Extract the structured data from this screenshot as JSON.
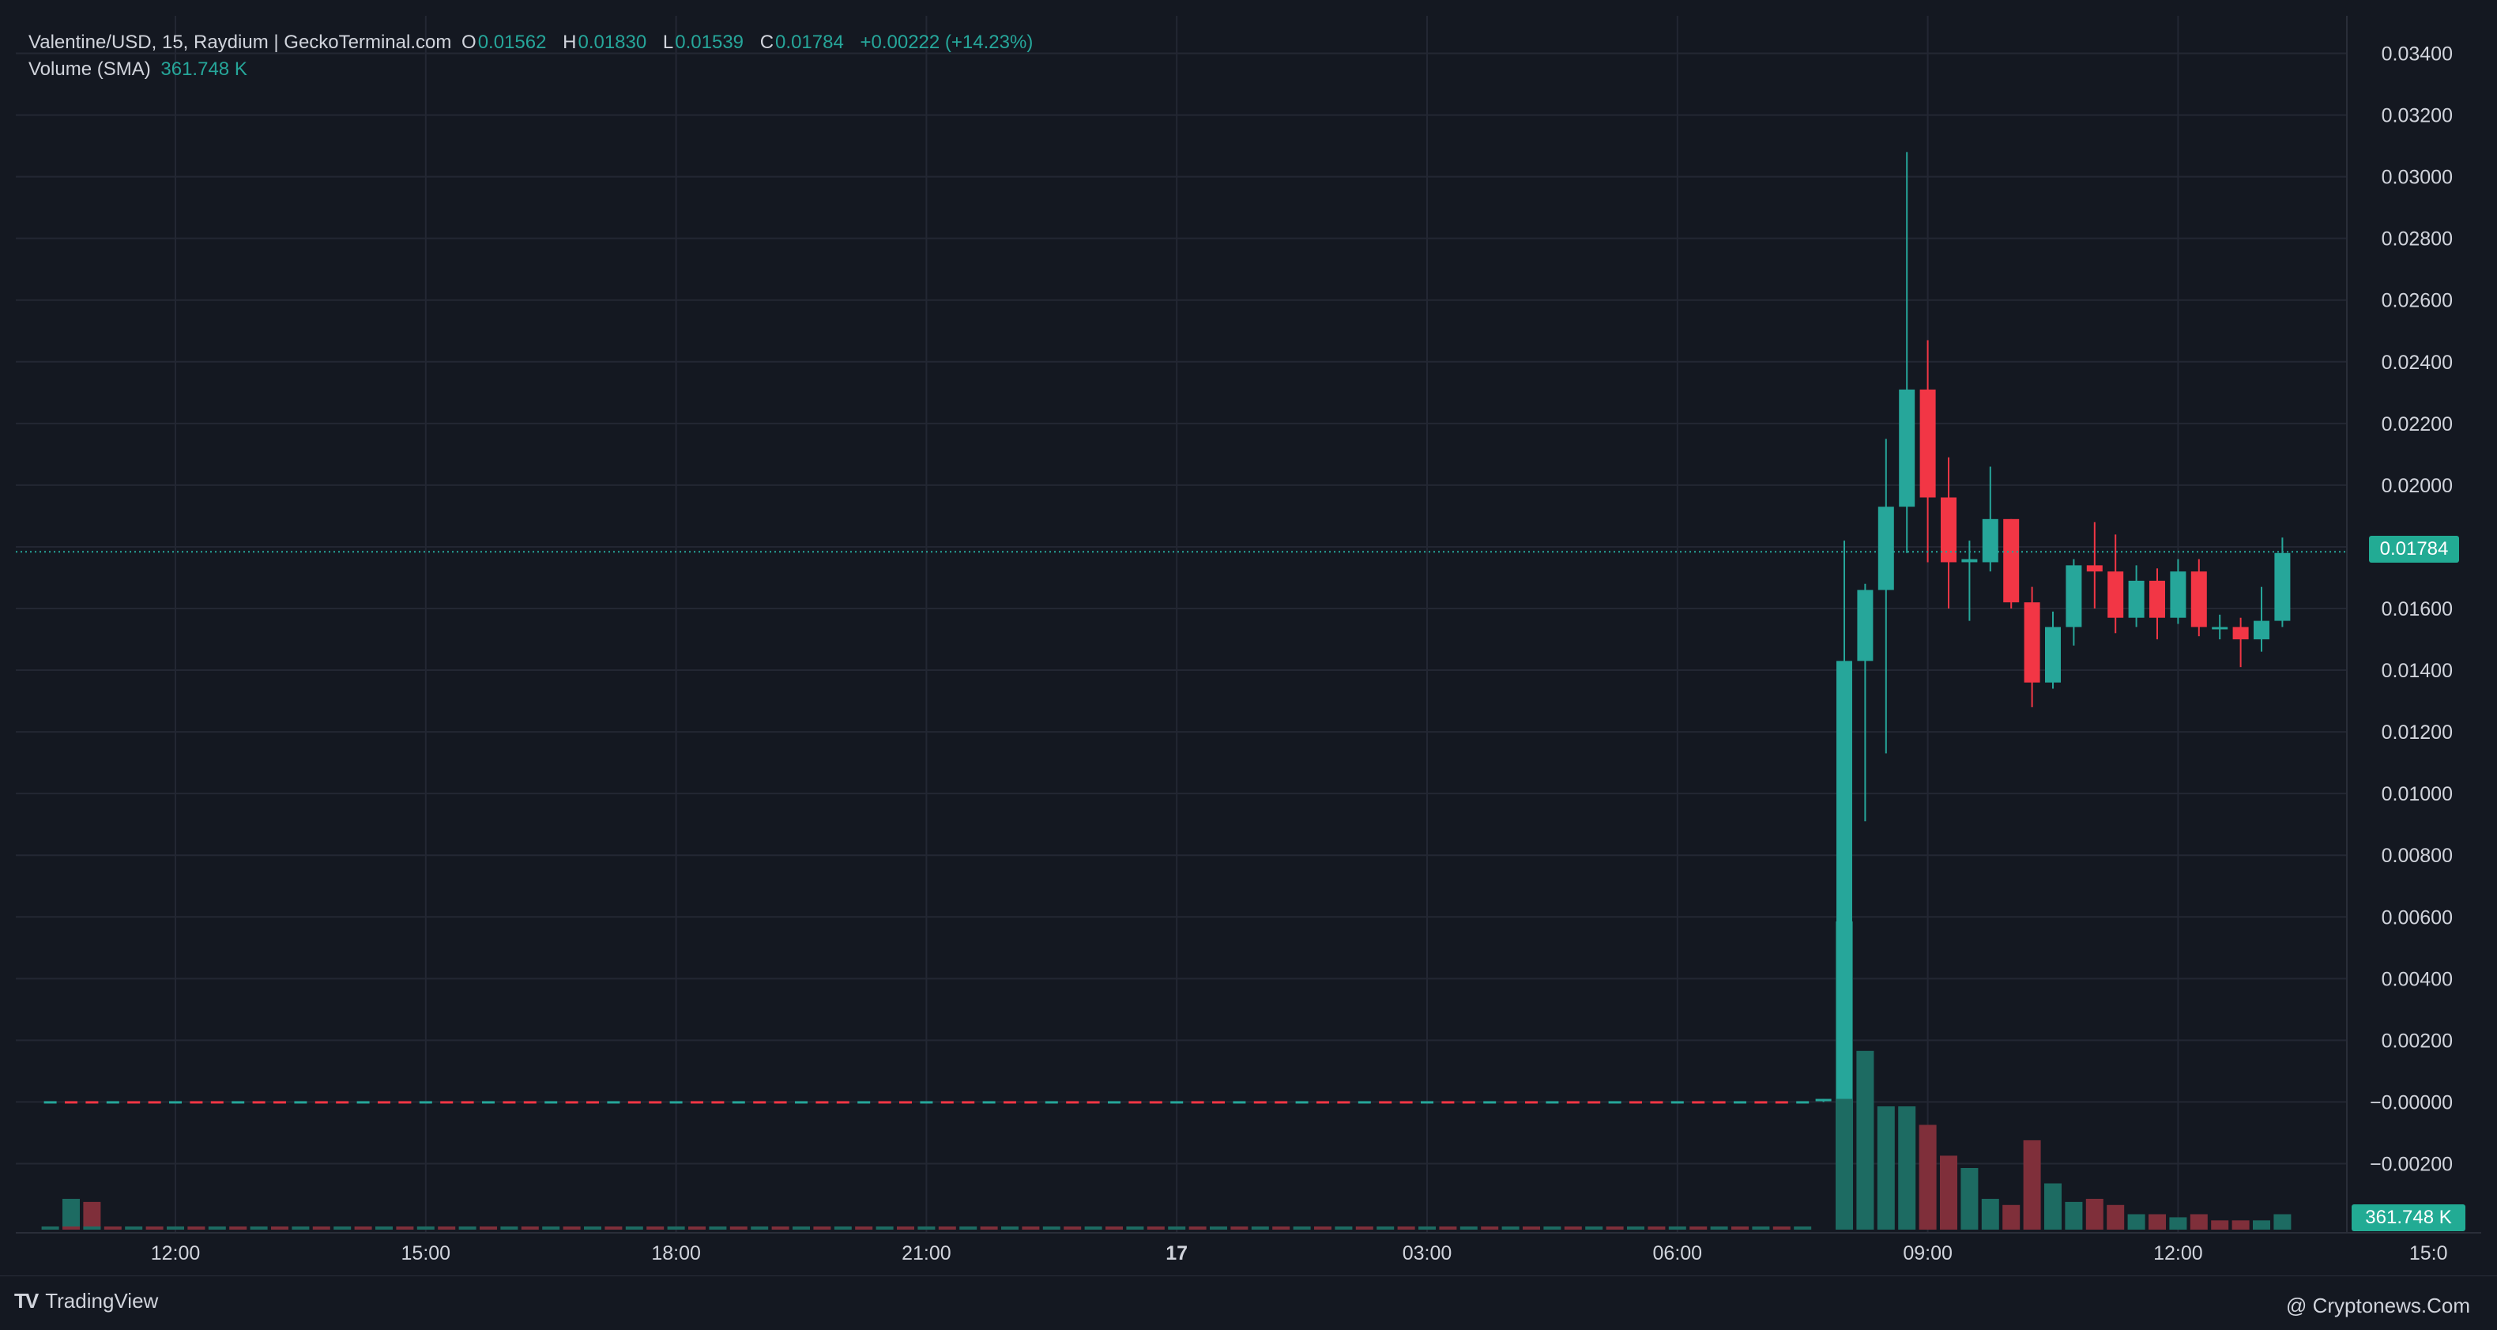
{
  "legend": {
    "symbol": "Valentine/USD, 15, Raydium | GeckoTerminal.com",
    "open_label": "O",
    "open": "0.01562",
    "high_label": "H",
    "high": "0.01830",
    "low_label": "L",
    "low": "0.01539",
    "close_label": "C",
    "close": "0.01784",
    "change": "+0.00222 (+14.23%)",
    "volume_label": "Volume (SMA)",
    "volume": "361.748 K"
  },
  "price_axis": {
    "ticks": [
      "0.03400",
      "0.03200",
      "0.03000",
      "0.02800",
      "0.02600",
      "0.02400",
      "0.02200",
      "0.02000",
      "0.01800",
      "0.01600",
      "0.01400",
      "0.01200",
      "0.01000",
      "0.00800",
      "0.00600",
      "0.00400",
      "0.00200",
      "−0.00000",
      "−0.00200"
    ],
    "tick_values": [
      0.034,
      0.032,
      0.03,
      0.028,
      0.026,
      0.024,
      0.022,
      0.02,
      0.018,
      0.016,
      0.014,
      0.012,
      0.01,
      0.008,
      0.006,
      0.004,
      0.002,
      0.0,
      -0.002
    ],
    "last_price_label": "0.01784",
    "last_price": 0.01784,
    "volume_label": "361.748 K"
  },
  "time_axis": {
    "labels": [
      "12:00",
      "15:00",
      "18:00",
      "21:00",
      "17",
      "03:00",
      "06:00",
      "09:00",
      "12:00",
      "15:0"
    ],
    "label_hours": [
      12,
      15,
      18,
      21,
      24,
      27,
      30,
      33,
      36,
      39
    ],
    "bold_index": 4
  },
  "colors": {
    "background": "#141821",
    "grid": "#232733",
    "up": "#26a69a",
    "down": "#f23645",
    "volume_up": "#1d6b62",
    "volume_down": "#7f2f3a",
    "text": "#d1d4dc",
    "axis_text": "#d1d4dc"
  },
  "chart_data": {
    "type": "candlestick",
    "interval": "15",
    "y_range": [
      -0.0025,
      0.0345
    ],
    "x_unit": "hours since 00:00 of day 16",
    "candles": [
      {
        "t": 31.75,
        "o": 0.0001,
        "h": 0.0001,
        "l": 0.0,
        "c": 0.0001
      },
      {
        "t": 32.0,
        "o": 0.0001,
        "h": 0.0182,
        "l": 0.0001,
        "c": 0.0143
      },
      {
        "t": 32.25,
        "o": 0.0143,
        "h": 0.0168,
        "l": 0.0091,
        "c": 0.0166
      },
      {
        "t": 32.5,
        "o": 0.0166,
        "h": 0.0215,
        "l": 0.0113,
        "c": 0.0193
      },
      {
        "t": 32.75,
        "o": 0.0193,
        "h": 0.0308,
        "l": 0.0178,
        "c": 0.0231
      },
      {
        "t": 33.0,
        "o": 0.0231,
        "h": 0.0247,
        "l": 0.0175,
        "c": 0.0196
      },
      {
        "t": 33.25,
        "o": 0.0196,
        "h": 0.0209,
        "l": 0.016,
        "c": 0.0175
      },
      {
        "t": 33.5,
        "o": 0.0175,
        "h": 0.0182,
        "l": 0.0156,
        "c": 0.0176
      },
      {
        "t": 33.75,
        "o": 0.0175,
        "h": 0.0206,
        "l": 0.0172,
        "c": 0.0189
      },
      {
        "t": 34.0,
        "o": 0.0189,
        "h": 0.0189,
        "l": 0.016,
        "c": 0.0162
      },
      {
        "t": 34.25,
        "o": 0.0162,
        "h": 0.0167,
        "l": 0.0128,
        "c": 0.0136
      },
      {
        "t": 34.5,
        "o": 0.0136,
        "h": 0.0159,
        "l": 0.0134,
        "c": 0.0154
      },
      {
        "t": 34.75,
        "o": 0.0154,
        "h": 0.0176,
        "l": 0.0148,
        "c": 0.0174
      },
      {
        "t": 35.0,
        "o": 0.0174,
        "h": 0.0188,
        "l": 0.016,
        "c": 0.0172
      },
      {
        "t": 35.25,
        "o": 0.0172,
        "h": 0.0184,
        "l": 0.0152,
        "c": 0.0157
      },
      {
        "t": 35.5,
        "o": 0.0157,
        "h": 0.0174,
        "l": 0.0154,
        "c": 0.0169
      },
      {
        "t": 35.75,
        "o": 0.0169,
        "h": 0.0173,
        "l": 0.015,
        "c": 0.0157
      },
      {
        "t": 36.0,
        "o": 0.0157,
        "h": 0.0176,
        "l": 0.0155,
        "c": 0.0172
      },
      {
        "t": 36.25,
        "o": 0.0172,
        "h": 0.0176,
        "l": 0.0151,
        "c": 0.0154
      },
      {
        "t": 36.5,
        "o": 0.0154,
        "h": 0.0158,
        "l": 0.015,
        "c": 0.0154
      },
      {
        "t": 36.75,
        "o": 0.0154,
        "h": 0.0157,
        "l": 0.0141,
        "c": 0.015
      },
      {
        "t": 37.0,
        "o": 0.015,
        "h": 0.0167,
        "l": 0.0146,
        "c": 0.0156
      },
      {
        "t": 37.25,
        "o": 0.0156,
        "h": 0.0183,
        "l": 0.0154,
        "c": 0.0178
      }
    ],
    "volume_bars": [
      {
        "t": 10.75,
        "v": 0.1,
        "up": true
      },
      {
        "t": 11.0,
        "v": 0.09,
        "up": false
      },
      {
        "t": 32.0,
        "v": 1.0,
        "up": true
      },
      {
        "t": 32.25,
        "v": 0.58,
        "up": true
      },
      {
        "t": 32.5,
        "v": 0.4,
        "up": true
      },
      {
        "t": 32.75,
        "v": 0.4,
        "up": true
      },
      {
        "t": 33.0,
        "v": 0.34,
        "up": false
      },
      {
        "t": 33.25,
        "v": 0.24,
        "up": false
      },
      {
        "t": 33.5,
        "v": 0.2,
        "up": true
      },
      {
        "t": 33.75,
        "v": 0.1,
        "up": true
      },
      {
        "t": 34.0,
        "v": 0.08,
        "up": false
      },
      {
        "t": 34.25,
        "v": 0.29,
        "up": false
      },
      {
        "t": 34.5,
        "v": 0.15,
        "up": true
      },
      {
        "t": 34.75,
        "v": 0.09,
        "up": true
      },
      {
        "t": 35.0,
        "v": 0.1,
        "up": false
      },
      {
        "t": 35.25,
        "v": 0.08,
        "up": false
      },
      {
        "t": 35.5,
        "v": 0.05,
        "up": true
      },
      {
        "t": 35.75,
        "v": 0.05,
        "up": false
      },
      {
        "t": 36.0,
        "v": 0.04,
        "up": true
      },
      {
        "t": 36.25,
        "v": 0.05,
        "up": false
      },
      {
        "t": 36.5,
        "v": 0.03,
        "up": false
      },
      {
        "t": 36.75,
        "v": 0.03,
        "up": false
      },
      {
        "t": 37.0,
        "v": 0.03,
        "up": true
      },
      {
        "t": 37.25,
        "v": 0.05,
        "up": true
      }
    ],
    "flat_segment": {
      "t_start": 10.5,
      "t_end": 31.75,
      "value": 0.0,
      "mixed_colors": true
    }
  },
  "footer": {
    "brand": "TradingView",
    "brand_logo": "TV",
    "watermark": "@ Cryptonews.Com"
  }
}
